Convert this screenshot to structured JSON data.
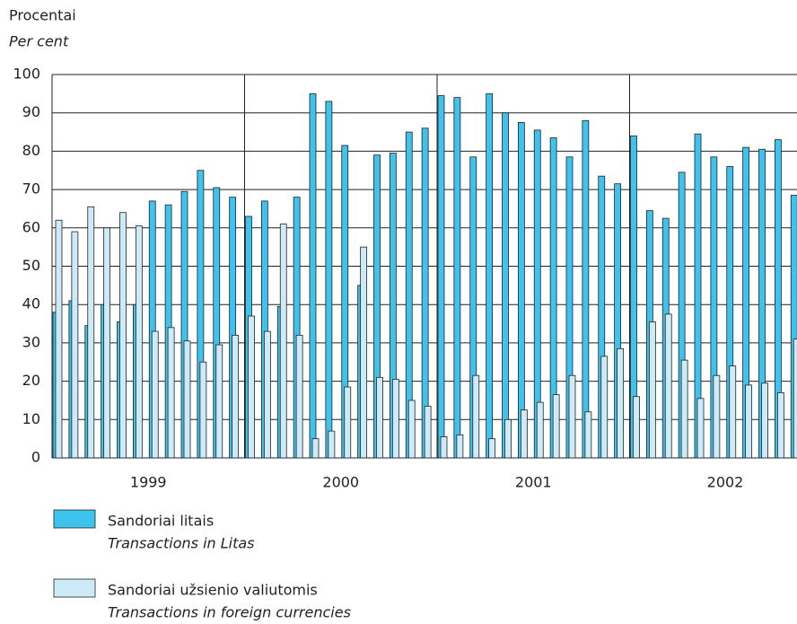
{
  "chart_data": {
    "type": "bar",
    "y_label": "Procentai",
    "y_label_en": "Per cent",
    "years": [
      "1999",
      "2000",
      "2001",
      "2002"
    ],
    "categories": [
      null,
      null,
      null,
      null,
      null,
      null,
      null,
      null,
      null,
      null,
      null,
      null,
      null,
      null,
      null,
      null,
      null,
      null,
      null,
      null,
      null,
      null,
      null,
      null,
      null,
      null,
      null,
      null,
      null,
      null,
      null,
      null,
      null,
      null,
      null,
      null,
      null,
      null,
      null,
      null,
      null,
      null,
      null,
      null,
      null,
      null,
      null
    ],
    "series": [
      {
        "name": "Sandoriai litais",
        "name_en": "Transactions in Litas",
        "color": "#3ec3ef",
        "values": [
          38,
          41,
          34.5,
          40,
          35.5,
          40,
          67,
          66,
          69.5,
          75,
          70.5,
          68,
          63,
          67,
          39.5,
          68,
          95,
          93,
          81.5,
          45,
          79,
          79.5,
          85,
          86,
          94.5,
          94,
          78.5,
          95,
          90,
          87.5,
          85.5,
          83.5,
          78.5,
          88,
          73.5,
          71.5,
          84,
          64.5,
          62.5,
          74.5,
          84.5,
          78.5,
          76,
          81,
          80.5,
          83,
          68.5
        ]
      },
      {
        "name": "Sandoriai užsienio valiutomis",
        "name_en": "Transactions in foreign currencies",
        "color": "#cdeaf8",
        "values": [
          62,
          59,
          65.5,
          60,
          64,
          60.5,
          33,
          34,
          30.5,
          25,
          29.5,
          32,
          37,
          33,
          61,
          32,
          5,
          7,
          18.5,
          55,
          21,
          20.5,
          15,
          13.5,
          5.5,
          6,
          21.5,
          5,
          10,
          12.5,
          14.5,
          16.5,
          21.5,
          12,
          26.5,
          28.5,
          16,
          35.5,
          37.5,
          25.5,
          15.5,
          21.5,
          24,
          19,
          19.5,
          17,
          31
        ]
      }
    ],
    "ylim": [
      0,
      100
    ],
    "yticks": [
      0,
      10,
      20,
      30,
      40,
      50,
      60,
      70,
      80,
      90,
      100
    ],
    "grid": true
  }
}
